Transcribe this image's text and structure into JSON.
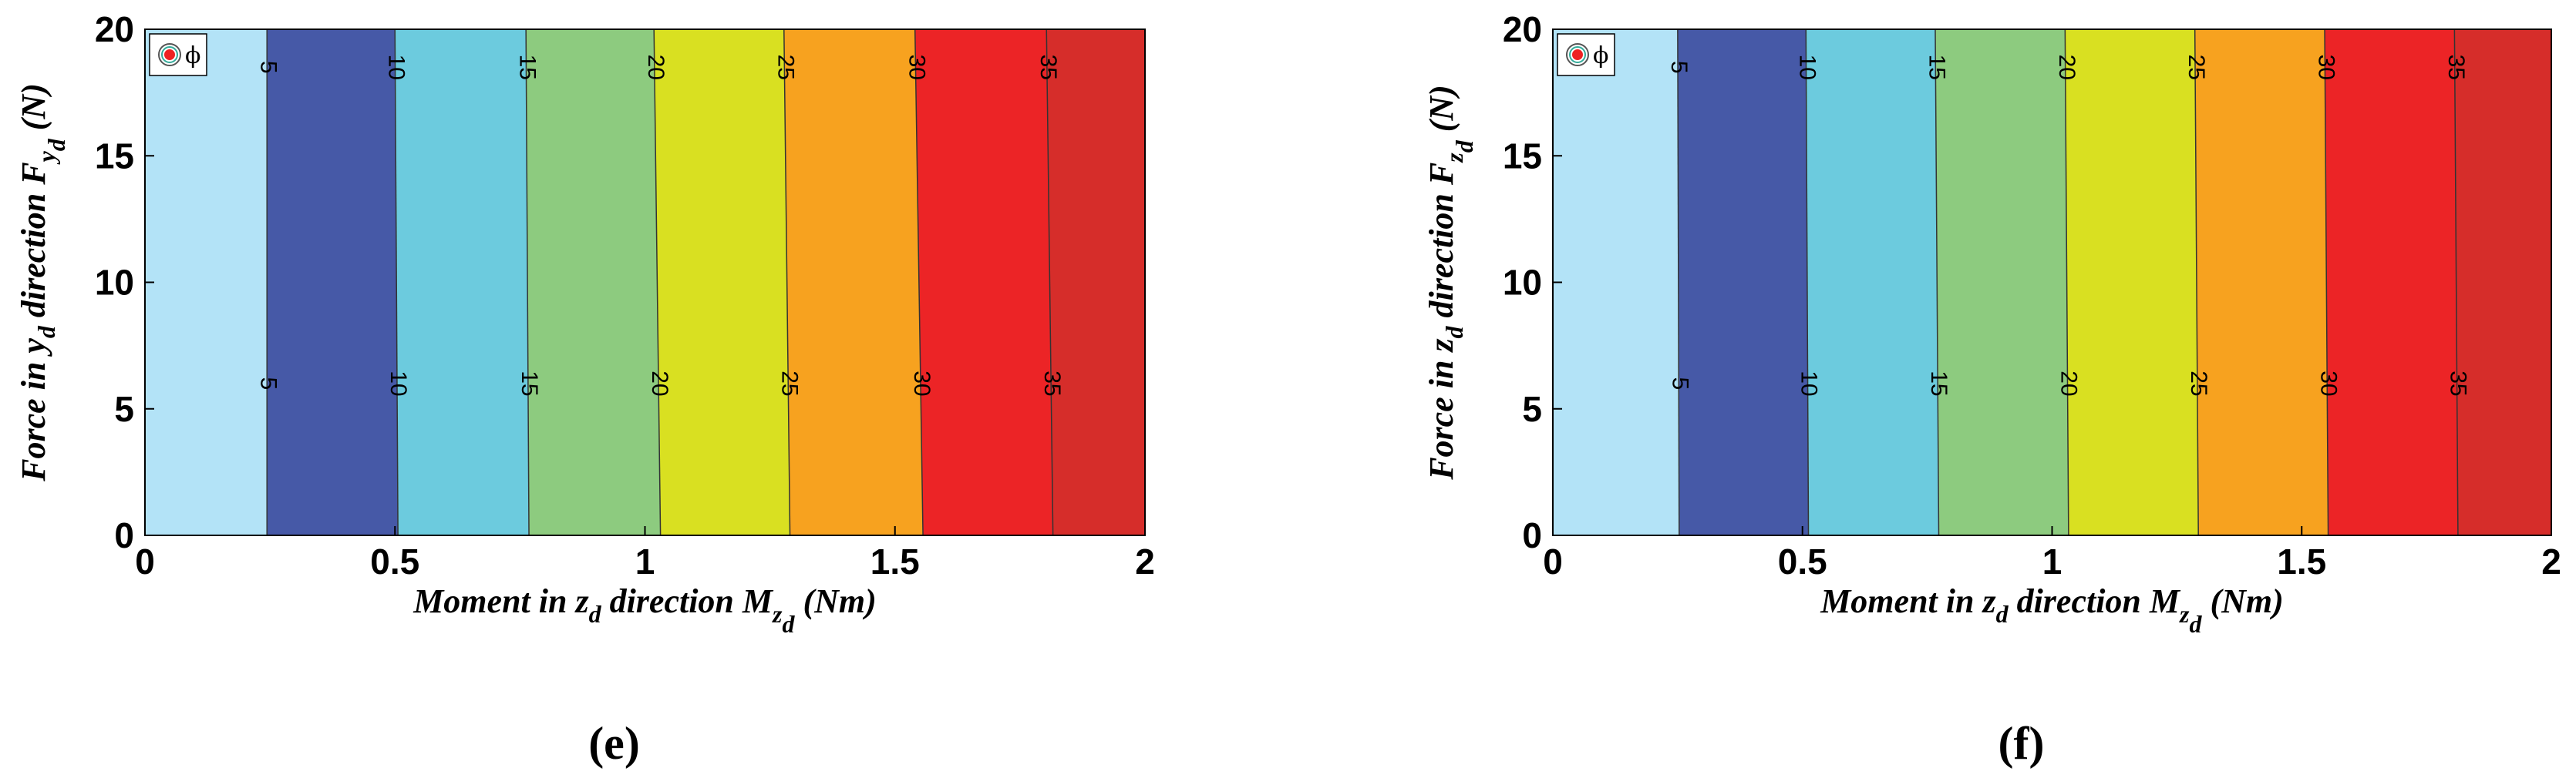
{
  "chart_data": [
    {
      "type": "contour",
      "caption": "(e)",
      "xlabel": [
        {
          "text": "Moment in z",
          "sub": 0
        },
        {
          "text": "d",
          "sub": 1
        },
        {
          "text": " direction M",
          "sub": 0
        },
        {
          "text": "z",
          "sub": 1
        },
        {
          "text": "d",
          "sub": 2
        },
        {
          "text": "  (Nm)",
          "sub": 0
        }
      ],
      "ylabel": [
        {
          "text": "Force in y",
          "sub": 0
        },
        {
          "text": "d",
          "sub": 1
        },
        {
          "text": " direction F",
          "sub": 0
        },
        {
          "text": "y",
          "sub": 1
        },
        {
          "text": "d",
          "sub": 2
        },
        {
          "text": "  (N)",
          "sub": 0
        }
      ],
      "legend": "ϕ",
      "xlim": [
        0,
        2
      ],
      "ylim": [
        0,
        20
      ],
      "xticks": [
        0,
        0.5,
        1,
        1.5,
        2
      ],
      "yticks": [
        0,
        5,
        10,
        15,
        20
      ],
      "contour_y": [
        0,
        20
      ],
      "label_y": [
        6,
        18.5
      ],
      "contours": [
        {
          "level": 5,
          "x": [
            0.244,
            0.244
          ]
        },
        {
          "level": 10,
          "x": [
            0.506,
            0.5
          ]
        },
        {
          "level": 15,
          "x": [
            0.768,
            0.762
          ]
        },
        {
          "level": 20,
          "x": [
            1.031,
            1.018
          ]
        },
        {
          "level": 25,
          "x": [
            1.29,
            1.278
          ]
        },
        {
          "level": 30,
          "x": [
            1.556,
            1.54
          ]
        },
        {
          "level": 35,
          "x": [
            1.816,
            1.803
          ]
        }
      ],
      "colors": [
        "#b3e3f7",
        "#4659a7",
        "#6ccbde",
        "#8dcb7f",
        "#d9e021",
        "#f7a21f",
        "#ec2426",
        "#d62d2a"
      ]
    },
    {
      "type": "contour",
      "caption": "(f)",
      "xlabel": [
        {
          "text": "Moment in z",
          "sub": 0
        },
        {
          "text": "d",
          "sub": 1
        },
        {
          "text": " direction M",
          "sub": 0
        },
        {
          "text": "z",
          "sub": 1
        },
        {
          "text": "d",
          "sub": 2
        },
        {
          "text": "  (Nm)",
          "sub": 0
        }
      ],
      "ylabel": [
        {
          "text": "Force in z",
          "sub": 0
        },
        {
          "text": "d",
          "sub": 1
        },
        {
          "text": " direction F",
          "sub": 0
        },
        {
          "text": "z",
          "sub": 1
        },
        {
          "text": "d",
          "sub": 2
        },
        {
          "text": "  (N)",
          "sub": 0
        }
      ],
      "legend": "ϕ",
      "xlim": [
        0,
        2
      ],
      "ylim": [
        0,
        20
      ],
      "xticks": [
        0,
        0.5,
        1,
        1.5,
        2
      ],
      "yticks": [
        0,
        5,
        10,
        15,
        20
      ],
      "contour_y": [
        0,
        20
      ],
      "label_y": [
        6,
        18.5
      ],
      "contours": [
        {
          "level": 5,
          "x": [
            0.253,
            0.25
          ]
        },
        {
          "level": 10,
          "x": [
            0.512,
            0.507
          ]
        },
        {
          "level": 15,
          "x": [
            0.773,
            0.766
          ]
        },
        {
          "level": 20,
          "x": [
            1.033,
            1.026
          ]
        },
        {
          "level": 25,
          "x": [
            1.293,
            1.286
          ]
        },
        {
          "level": 30,
          "x": [
            1.553,
            1.546
          ]
        },
        {
          "level": 35,
          "x": [
            1.813,
            1.806
          ]
        }
      ],
      "colors": [
        "#b3e3f7",
        "#4659a7",
        "#6ccbde",
        "#8dcb7f",
        "#d9e021",
        "#f7a21f",
        "#ec2426",
        "#d62d2a"
      ]
    }
  ]
}
